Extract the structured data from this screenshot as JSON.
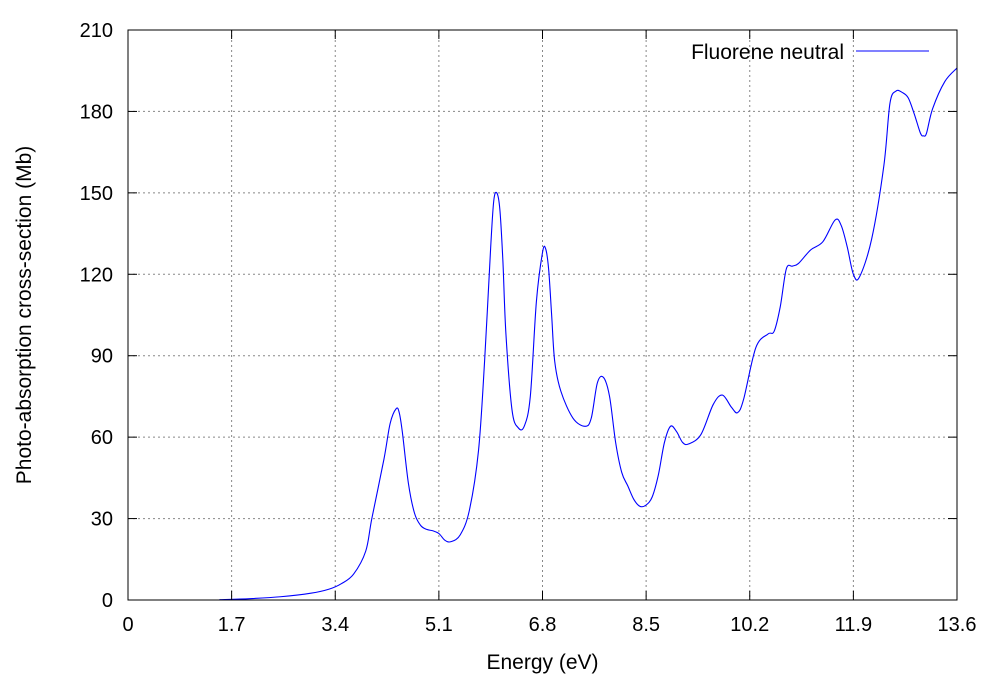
{
  "chart_data": {
    "type": "line",
    "title": "",
    "xlabel": "Energy (eV)",
    "ylabel": "Photo-absorption cross-section (Mb)",
    "xlim": [
      0,
      13.6
    ],
    "ylim": [
      0,
      210
    ],
    "xticks": [
      0,
      1.7,
      3.4,
      5.1,
      6.8,
      8.5,
      10.2,
      11.9,
      13.6
    ],
    "xtick_labels": [
      "0",
      "1.7",
      "3.4",
      "5.1",
      "6.8",
      "8.5",
      "10.2",
      "11.9",
      "13.6"
    ],
    "yticks": [
      0,
      30,
      60,
      90,
      120,
      150,
      180,
      210
    ],
    "ytick_labels": [
      "0",
      "30",
      "60",
      "90",
      "120",
      "150",
      "180",
      "210"
    ],
    "grid": true,
    "legend_position": "top-right",
    "colors": {
      "series": "#0000ff",
      "grid": "#888888",
      "axes": "#000000"
    },
    "series": [
      {
        "name": "Fluorene neutral",
        "x": [
          1.5,
          2.0,
          2.5,
          3.0,
          3.3,
          3.5,
          3.7,
          3.9,
          4.0,
          4.2,
          4.3,
          4.4,
          4.45,
          4.5,
          4.6,
          4.7,
          4.8,
          4.9,
          5.0,
          5.1,
          5.2,
          5.3,
          5.45,
          5.6,
          5.75,
          5.85,
          5.95,
          6.0,
          6.05,
          6.1,
          6.15,
          6.2,
          6.3,
          6.4,
          6.5,
          6.6,
          6.7,
          6.8,
          6.85,
          6.9,
          6.95,
          7.0,
          7.1,
          7.3,
          7.5,
          7.6,
          7.7,
          7.8,
          7.9,
          8.0,
          8.1,
          8.2,
          8.3,
          8.4,
          8.5,
          8.6,
          8.7,
          8.8,
          8.9,
          9.0,
          9.1,
          9.2,
          9.4,
          9.6,
          9.75,
          9.9,
          10.0,
          10.1,
          10.3,
          10.5,
          10.6,
          10.7,
          10.8,
          10.9,
          11.0,
          11.2,
          11.4,
          11.6,
          11.7,
          11.8,
          11.9,
          12.0,
          12.2,
          12.4,
          12.5,
          12.6,
          12.7,
          12.8,
          12.9,
          13.0,
          13.05,
          13.1,
          13.2,
          13.4,
          13.6
        ],
        "values": [
          0.1,
          0.5,
          1.2,
          2.5,
          4.0,
          6.0,
          9.5,
          18.0,
          30.0,
          52.0,
          65.0,
          70.5,
          69.0,
          62.0,
          43.0,
          32.0,
          27.5,
          26.0,
          25.5,
          24.5,
          22.0,
          21.5,
          24.0,
          33.0,
          55.0,
          88.0,
          130.0,
          147.0,
          150.0,
          144.0,
          125.0,
          98.0,
          70.0,
          63.5,
          64.0,
          75.0,
          110.0,
          128.0,
          129.5,
          122.0,
          105.0,
          88.0,
          77.0,
          67.0,
          64.0,
          67.0,
          80.0,
          82.0,
          75.0,
          58.0,
          47.0,
          42.0,
          37.0,
          34.5,
          35.0,
          38.0,
          46.0,
          58.0,
          64.0,
          62.0,
          58.0,
          57.5,
          61.0,
          72.0,
          75.5,
          71.0,
          69.0,
          74.0,
          93.0,
          98.0,
          99.0,
          108.0,
          122.0,
          123.0,
          124.0,
          129.0,
          132.0,
          140.0,
          138.0,
          130.0,
          120.0,
          119.0,
          133.0,
          160.0,
          183.0,
          187.5,
          187.0,
          185.0,
          179.0,
          172.0,
          171.0,
          172.0,
          181.0,
          191.0,
          196.0
        ]
      }
    ]
  }
}
